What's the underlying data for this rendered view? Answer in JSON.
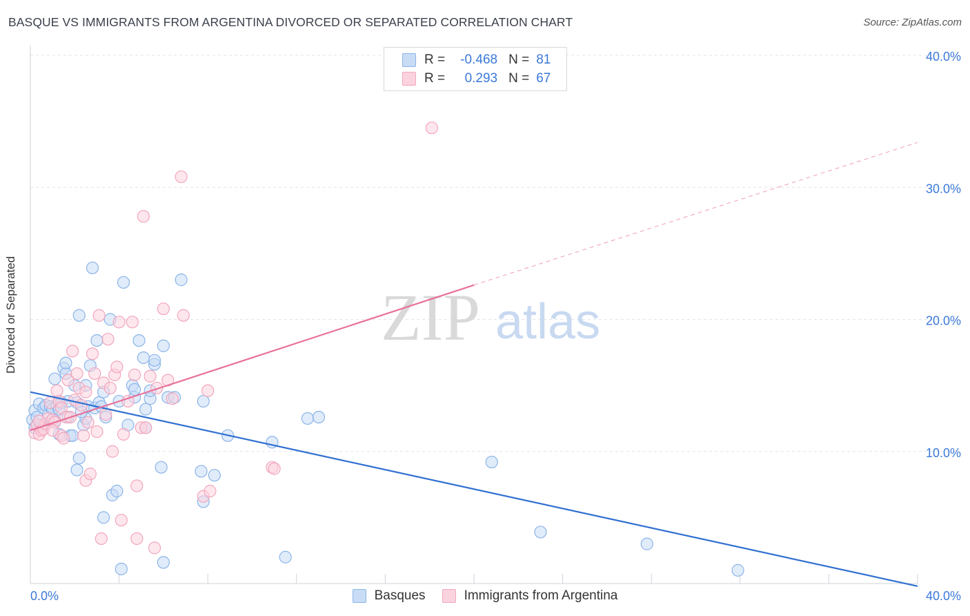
{
  "header": {
    "title": "BASQUE VS IMMIGRANTS FROM ARGENTINA DIVORCED OR SEPARATED CORRELATION CHART",
    "source": "Source: ZipAtlas.com"
  },
  "watermark": {
    "zip": "ZIP",
    "atlas": "atlas"
  },
  "legend": {
    "rows": [
      {
        "r_label": "R =",
        "r_value": "-0.468",
        "n_label": "N =",
        "n_value": "81",
        "color": "#8ab4e8",
        "fill": "#c9dcf5"
      },
      {
        "r_label": "R =",
        "r_value": "0.293",
        "n_label": "N =",
        "n_value": "67",
        "color": "#f2a5bd",
        "fill": "#fbd3df"
      }
    ]
  },
  "bottom_legend": [
    {
      "label": "Basques",
      "color": "#8ab4e8",
      "fill": "#c9dcf5"
    },
    {
      "label": "Immigrants from Argentina",
      "color": "#f2a5bd",
      "fill": "#fbd3df"
    }
  ],
  "chart_data": {
    "type": "scatter",
    "title": "BASQUE VS IMMIGRANTS FROM ARGENTINA DIVORCED OR SEPARATED CORRELATION CHART",
    "ylabel": "Divorced or Separated",
    "xlabel": "",
    "xlim": [
      0,
      40
    ],
    "ylim": [
      0,
      40
    ],
    "x_tick_labels": [
      "0.0%",
      "40.0%"
    ],
    "y_tick_labels": [
      "10.0%",
      "20.0%",
      "30.0%",
      "40.0%"
    ],
    "y_ticks": [
      10,
      20,
      30,
      40
    ],
    "grid": true,
    "legend_position": "top-center",
    "series": [
      {
        "name": "Basques",
        "color": "#8ab4e8",
        "fill": "#c9dcf5",
        "line_color": "#2f6fd1",
        "trend": {
          "x": [
            0,
            40
          ],
          "y": [
            14.5,
            -0.2
          ]
        },
        "points": [
          [
            0.1,
            12.4
          ],
          [
            0.2,
            11.8
          ],
          [
            0.2,
            13.1
          ],
          [
            0.3,
            12.6
          ],
          [
            0.4,
            13.6
          ],
          [
            0.5,
            12.0
          ],
          [
            0.6,
            13.3
          ],
          [
            0.7,
            13.5
          ],
          [
            0.8,
            12.8
          ],
          [
            0.9,
            13.4
          ],
          [
            1.0,
            13.2
          ],
          [
            1.1,
            12.3
          ],
          [
            1.1,
            15.5
          ],
          [
            1.2,
            13.5
          ],
          [
            1.3,
            13.2
          ],
          [
            1.3,
            11.3
          ],
          [
            1.4,
            13.7
          ],
          [
            1.5,
            16.3
          ],
          [
            1.6,
            15.9
          ],
          [
            1.6,
            16.7
          ],
          [
            1.7,
            13.8
          ],
          [
            1.7,
            12.6
          ],
          [
            1.8,
            11.2
          ],
          [
            1.9,
            11.2
          ],
          [
            2.0,
            15.0
          ],
          [
            2.1,
            13.7
          ],
          [
            2.1,
            8.6
          ],
          [
            2.2,
            9.5
          ],
          [
            2.2,
            20.3
          ],
          [
            2.4,
            12.0
          ],
          [
            2.5,
            15.0
          ],
          [
            2.5,
            12.5
          ],
          [
            2.6,
            13.4
          ],
          [
            2.7,
            16.5
          ],
          [
            2.8,
            23.9
          ],
          [
            2.9,
            13.3
          ],
          [
            3.0,
            18.4
          ],
          [
            3.1,
            13.7
          ],
          [
            3.2,
            13.4
          ],
          [
            3.3,
            5.0
          ],
          [
            3.3,
            14.5
          ],
          [
            3.4,
            12.6
          ],
          [
            3.6,
            20.0
          ],
          [
            3.7,
            6.7
          ],
          [
            3.9,
            7.0
          ],
          [
            4.0,
            13.8
          ],
          [
            4.1,
            1.1
          ],
          [
            4.2,
            22.8
          ],
          [
            4.4,
            12.0
          ],
          [
            4.6,
            15.0
          ],
          [
            4.7,
            14.1
          ],
          [
            4.7,
            14.7
          ],
          [
            4.9,
            18.4
          ],
          [
            5.1,
            17.1
          ],
          [
            5.2,
            11.8
          ],
          [
            5.2,
            13.2
          ],
          [
            5.4,
            14.0
          ],
          [
            5.4,
            14.6
          ],
          [
            5.6,
            16.6
          ],
          [
            5.6,
            16.9
          ],
          [
            5.9,
            8.8
          ],
          [
            6.0,
            18.0
          ],
          [
            6.0,
            1.6
          ],
          [
            6.2,
            14.1
          ],
          [
            6.5,
            14.1
          ],
          [
            6.8,
            23.0
          ],
          [
            7.7,
            8.5
          ],
          [
            7.8,
            6.2
          ],
          [
            7.8,
            13.8
          ],
          [
            8.3,
            8.2
          ],
          [
            8.9,
            11.2
          ],
          [
            10.9,
            10.7
          ],
          [
            11.5,
            2.0
          ],
          [
            12.5,
            12.5
          ],
          [
            13.0,
            12.6
          ],
          [
            20.8,
            9.2
          ],
          [
            23.0,
            3.9
          ],
          [
            27.8,
            3.0
          ],
          [
            31.9,
            1.0
          ],
          [
            0.6,
            11.9
          ],
          [
            2.3,
            13.0
          ]
        ]
      },
      {
        "name": "Immigrants from Argentina",
        "color": "#f2a5bd",
        "fill": "#fbd3df",
        "line_color": "#e8719a",
        "trend": {
          "x": [
            0,
            20
          ],
          "y": [
            11.6,
            22.6
          ]
        },
        "trend_dashed": {
          "x": [
            20,
            40
          ],
          "y": [
            22.6,
            33.4
          ]
        },
        "points": [
          [
            0.2,
            11.4
          ],
          [
            0.3,
            12.0
          ],
          [
            0.4,
            11.3
          ],
          [
            0.5,
            11.6
          ],
          [
            0.6,
            11.7
          ],
          [
            0.7,
            12.1
          ],
          [
            0.8,
            12.5
          ],
          [
            0.9,
            13.7
          ],
          [
            1.0,
            12.4
          ],
          [
            1.1,
            12.2
          ],
          [
            1.2,
            14.6
          ],
          [
            1.3,
            13.8
          ],
          [
            1.4,
            11.2
          ],
          [
            1.4,
            13.3
          ],
          [
            1.5,
            11.0
          ],
          [
            1.6,
            12.6
          ],
          [
            1.7,
            15.4
          ],
          [
            1.8,
            12.6
          ],
          [
            1.9,
            17.6
          ],
          [
            2.0,
            13.9
          ],
          [
            2.1,
            15.9
          ],
          [
            2.2,
            14.8
          ],
          [
            2.3,
            13.5
          ],
          [
            2.4,
            11.2
          ],
          [
            2.5,
            14.5
          ],
          [
            2.5,
            7.8
          ],
          [
            2.6,
            12.2
          ],
          [
            2.7,
            8.3
          ],
          [
            2.8,
            17.4
          ],
          [
            2.9,
            15.9
          ],
          [
            3.0,
            11.5
          ],
          [
            3.1,
            20.3
          ],
          [
            3.2,
            3.4
          ],
          [
            3.3,
            15.2
          ],
          [
            3.4,
            12.8
          ],
          [
            3.5,
            18.5
          ],
          [
            3.6,
            14.8
          ],
          [
            3.7,
            10.0
          ],
          [
            3.8,
            15.8
          ],
          [
            3.9,
            16.4
          ],
          [
            4.0,
            19.8
          ],
          [
            4.1,
            4.8
          ],
          [
            4.2,
            11.3
          ],
          [
            4.4,
            13.8
          ],
          [
            4.6,
            19.8
          ],
          [
            4.7,
            15.8
          ],
          [
            4.8,
            3.4
          ],
          [
            4.8,
            7.4
          ],
          [
            5.0,
            11.8
          ],
          [
            5.1,
            27.8
          ],
          [
            5.2,
            11.8
          ],
          [
            5.4,
            15.7
          ],
          [
            5.6,
            2.7
          ],
          [
            5.7,
            14.8
          ],
          [
            6.0,
            20.8
          ],
          [
            6.2,
            15.4
          ],
          [
            6.4,
            14.0
          ],
          [
            6.8,
            30.8
          ],
          [
            6.9,
            20.3
          ],
          [
            7.8,
            6.6
          ],
          [
            8.0,
            14.6
          ],
          [
            8.1,
            7.0
          ],
          [
            10.9,
            8.8
          ],
          [
            11.0,
            8.7
          ],
          [
            18.1,
            34.5
          ],
          [
            0.4,
            12.3
          ],
          [
            1.0,
            11.6
          ]
        ]
      }
    ]
  }
}
